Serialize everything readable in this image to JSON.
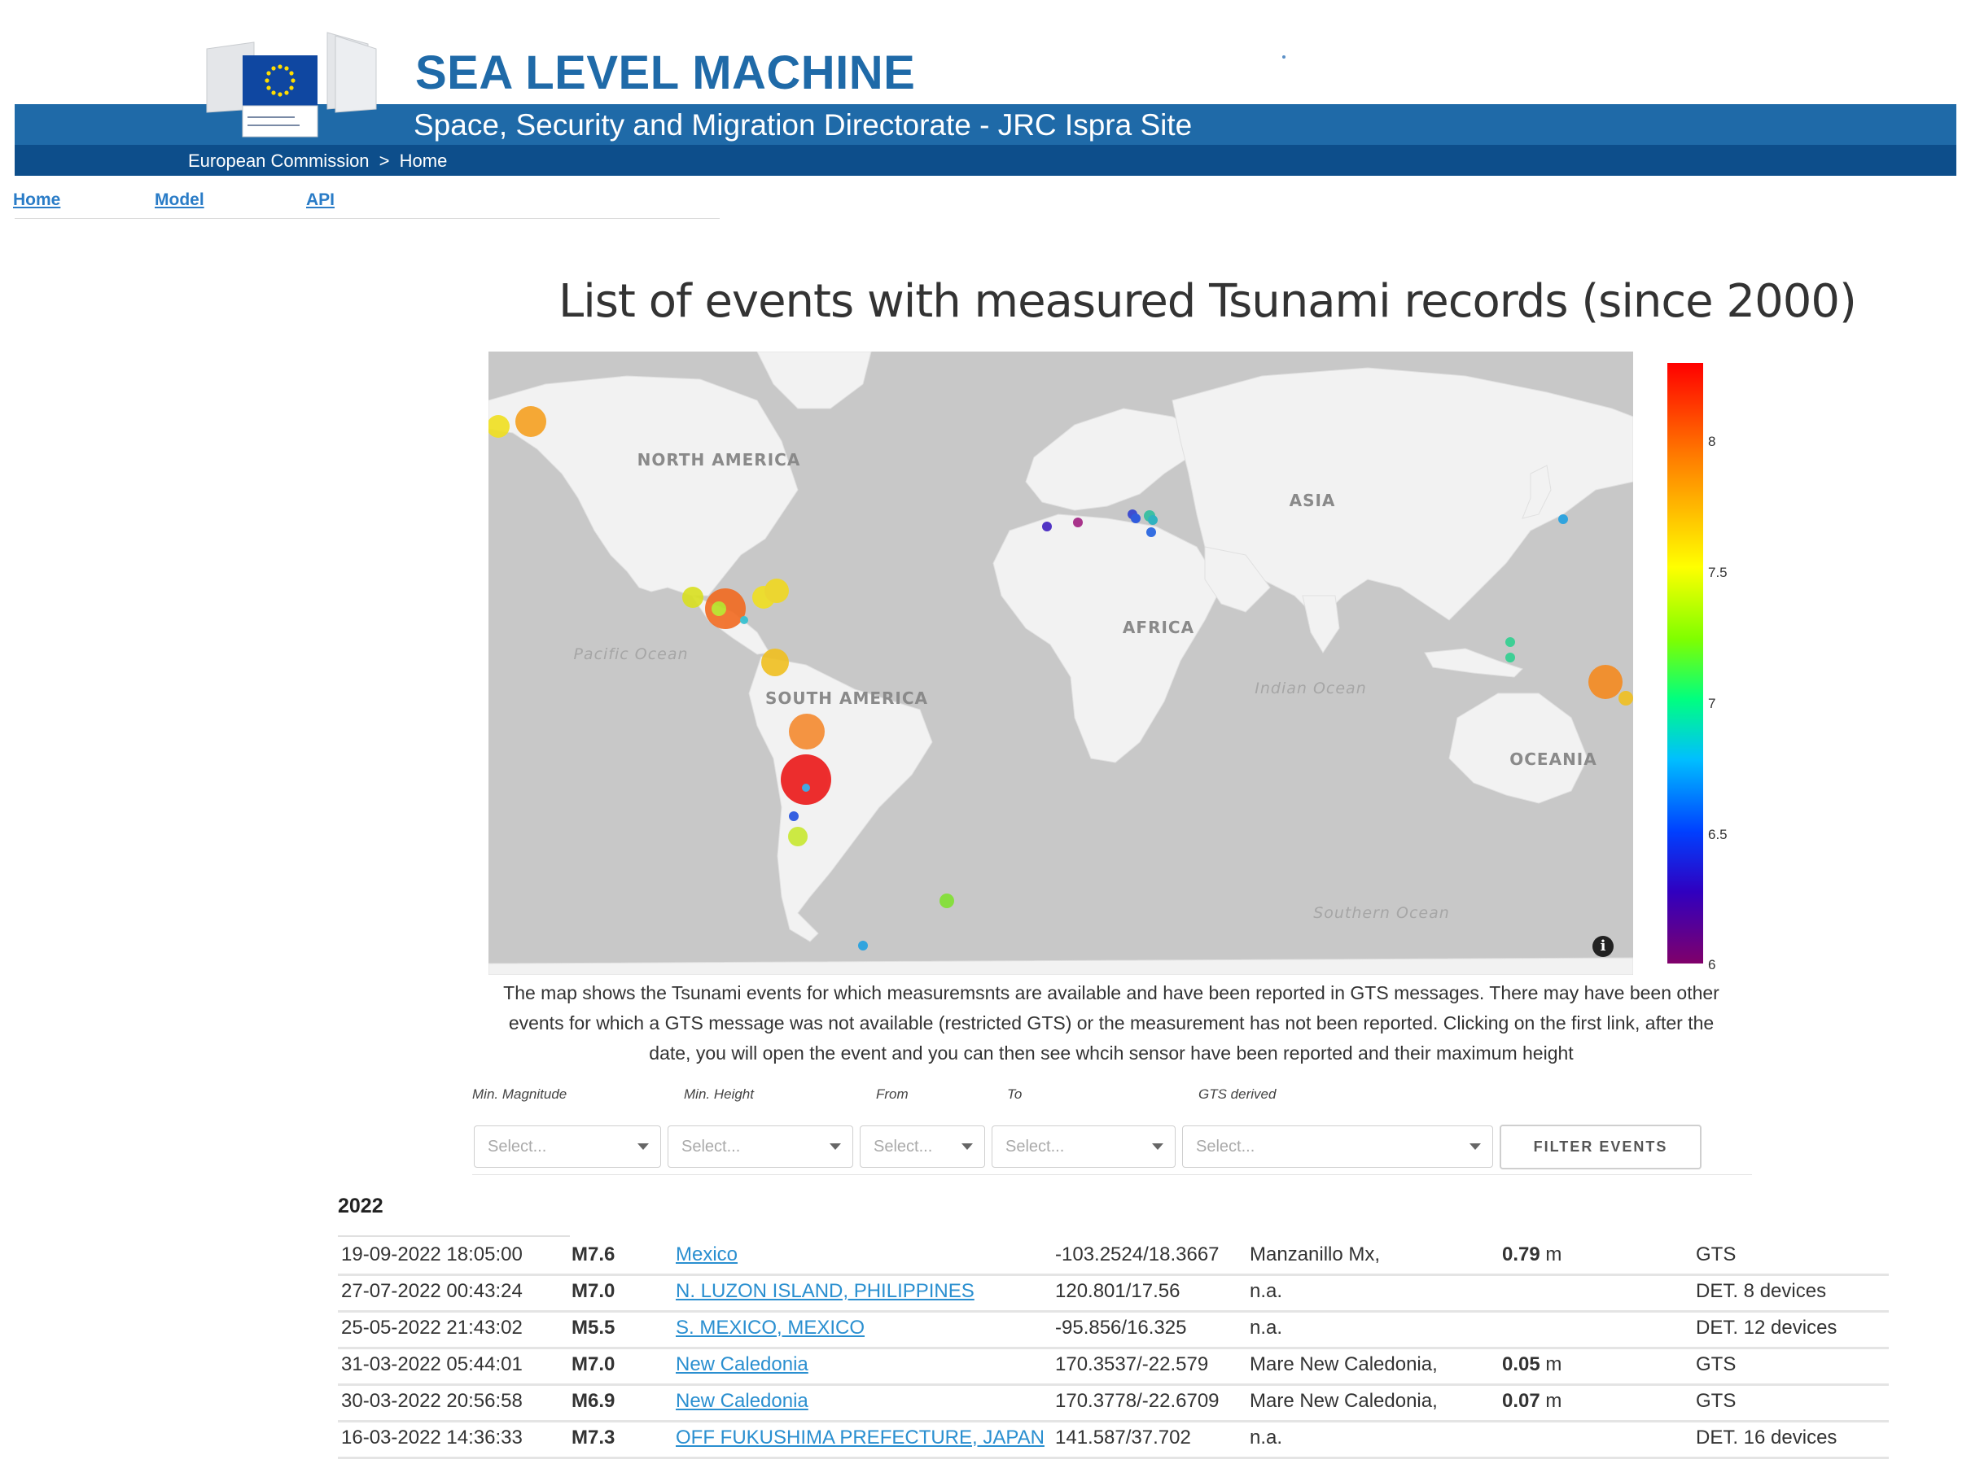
{
  "header": {
    "title": "SEA LEVEL MACHINE",
    "subtitle": "Space, Security and Migration Directorate - JRC Ispra Site",
    "logo_text": "European Commission",
    "breadcrumb": [
      "European Commission",
      ">",
      "Home"
    ]
  },
  "nav": {
    "items": [
      "Home",
      "Model",
      "API"
    ]
  },
  "page_title": "List of events with measured Tsunami records (since 2000)",
  "map": {
    "region_labels": {
      "north_america": "NORTH AMERICA",
      "south_america": "SOUTH AMERICA",
      "asia": "ASIA",
      "africa": "AFRICA",
      "oceania": "OCEANIA",
      "pacific": "Pacific Ocean",
      "indian": "Indian Ocean",
      "southern": "Southern Ocean"
    },
    "colorbar": {
      "ticks": [
        "8",
        "7.5",
        "7",
        "6.5",
        "6"
      ],
      "min": 6,
      "max": 8.3
    },
    "info_icon": "info-icon"
  },
  "description": "The map shows the Tsunami events for which measuremsnts are available and have been reported in GTS messages. There may have been other events for which a GTS message was not available (restricted GTS) or the measurement has not been reported. Clicking on the first link, after the date, you will open the event and you can then see whcih sensor have been reported and their maximum height",
  "filters": {
    "labels": [
      "Min. Magnitude",
      "Min. Height",
      "From",
      "To",
      "GTS derived"
    ],
    "placeholder": "Select...",
    "button": "FILTER EVENTS"
  },
  "events": {
    "year": "2022",
    "rows": [
      {
        "date": "19-09-2022 18:05:00",
        "mag": "M7.6",
        "location": "Mexico",
        "coords": "-103.2524/18.3667",
        "station": "Manzanillo Mx,",
        "height": "0.79",
        "unit": "m",
        "source": "GTS"
      },
      {
        "date": "27-07-2022 00:43:24",
        "mag": "M7.0",
        "location": "N. LUZON ISLAND, PHILIPPINES",
        "coords": "120.801/17.56",
        "station": "n.a.",
        "height": "",
        "unit": "",
        "source": "DET. 8 devices"
      },
      {
        "date": "25-05-2022 21:43:02",
        "mag": "M5.5",
        "location": "S. MEXICO, MEXICO",
        "coords": "-95.856/16.325",
        "station": "n.a.",
        "height": "",
        "unit": "",
        "source": "DET. 12 devices"
      },
      {
        "date": "31-03-2022 05:44:01",
        "mag": "M7.0",
        "location": "New Caledonia",
        "coords": "170.3537/-22.579",
        "station": "Mare New Caledonia,",
        "height": "0.05",
        "unit": "m",
        "source": "GTS"
      },
      {
        "date": "30-03-2022 20:56:58",
        "mag": "M6.9",
        "location": "New Caledonia",
        "coords": "170.3778/-22.6709",
        "station": "Mare New Caledonia,",
        "height": "0.07",
        "unit": "m",
        "source": "GTS"
      },
      {
        "date": "16-03-2022 14:36:33",
        "mag": "M7.3",
        "location": "OFF FUKUSHIMA PREFECTURE, JAPAN",
        "coords": "141.587/37.702",
        "station": "n.a.",
        "height": "",
        "unit": "",
        "source": "DET. 16 devices"
      }
    ]
  },
  "colors": {
    "header_blue": "#1f6aa8",
    "breadcrumb_blue": "#0d4e8b",
    "link_blue": "#2a8fd0",
    "map_water": "#c8c8c8",
    "map_land": "#f2f2f2"
  }
}
